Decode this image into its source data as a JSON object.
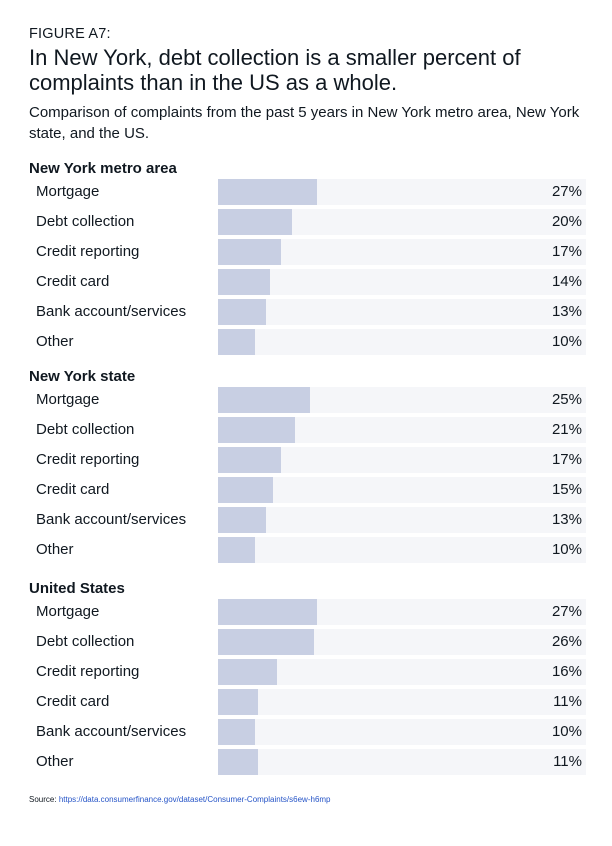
{
  "figure_label": "FIGURE A7:",
  "title": "In New York, debt collection is a smaller percent of complaints than in the US as a whole.",
  "subtitle": "Comparison of complaints from the past 5 years in New York metro area, New York state, and the US.",
  "source_prefix": "Source:",
  "source_url_text": "https://data.consumerfinance.gov/dataset/Consumer-Complaints/s6ew-h6mp",
  "colors": {
    "bar": "#c8cfe3",
    "track": "#f5f6f9",
    "link": "#2554c7"
  },
  "chart_data": {
    "type": "bar",
    "orientation": "horizontal",
    "title": "In New York, debt collection is a smaller percent of complaints than in the US as a whole.",
    "value_unit": "%",
    "xlim": [
      0,
      100
    ],
    "categories": [
      "Mortgage",
      "Debt collection",
      "Credit reporting",
      "Credit card",
      "Bank account/services",
      "Other"
    ],
    "series": [
      {
        "name": "New York metro area",
        "values": [
          27,
          20,
          17,
          14,
          13,
          10
        ],
        "labels": [
          "27%",
          "20%",
          "17%",
          "14%",
          "13%",
          "10%"
        ]
      },
      {
        "name": "New York state",
        "values": [
          25,
          21,
          17,
          15,
          13,
          10
        ],
        "labels": [
          "25%",
          "21%",
          "17%",
          "15%",
          "13%",
          "10%"
        ]
      },
      {
        "name": "United States",
        "values": [
          27,
          26,
          16,
          11,
          10,
          11
        ],
        "labels": [
          "27%",
          "26%",
          "16%",
          "11%",
          "10%",
          "11%"
        ]
      }
    ]
  }
}
